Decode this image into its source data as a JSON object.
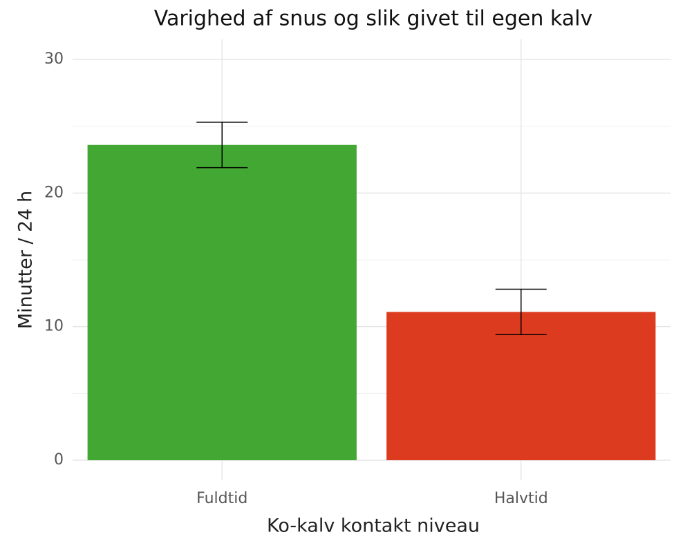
{
  "chart_data": {
    "type": "bar",
    "title": "Varighed af snus og slik givet til egen kalv",
    "x_label": "Ko-kalv kontakt niveau",
    "y_label": "Minutter / 24 h",
    "categories": [
      "Fuldtid",
      "Halvtid"
    ],
    "values": [
      23.6,
      11.1
    ],
    "errors": [
      1.7,
      1.7
    ],
    "colors": [
      "#43a833",
      "#dc3b1f"
    ],
    "ylim": [
      -1.5,
      31.5
    ],
    "yticks": [
      0,
      10,
      20,
      30
    ],
    "minor_yticks": [
      5,
      15,
      25
    ],
    "grid": true
  }
}
